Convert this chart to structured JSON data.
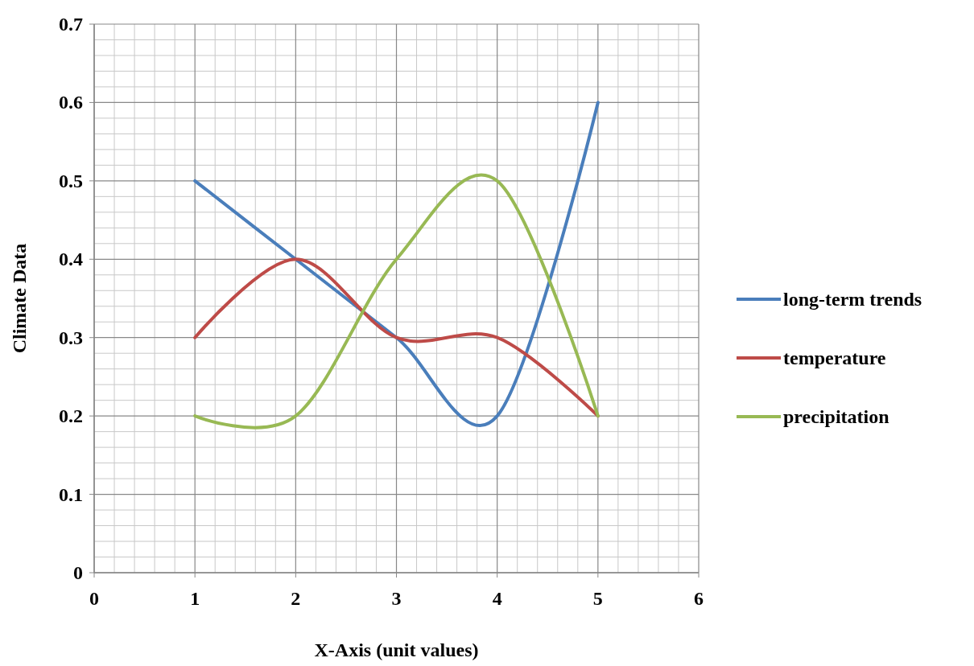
{
  "chart_data": {
    "type": "line",
    "xlabel": "X-Axis (unit values)",
    "ylabel": "Climate Data",
    "x": [
      1,
      2,
      3,
      4,
      5
    ],
    "xlim": [
      0,
      6
    ],
    "xticks": [
      0,
      1,
      2,
      3,
      4,
      5,
      6
    ],
    "ylim": [
      0,
      0.7
    ],
    "yticks": [
      0,
      0.1,
      0.2,
      0.3,
      0.4,
      0.5,
      0.6,
      0.7
    ],
    "grid": true,
    "legend": "right",
    "marker": "none",
    "line_style": "solid",
    "series": [
      {
        "name": "long-term trends",
        "color": "#4a7ebb",
        "values": [
          0.5,
          0.4,
          0.3,
          0.2,
          0.6
        ]
      },
      {
        "name": "temperature",
        "color": "#be4b48",
        "values": [
          0.3,
          0.4,
          0.3,
          0.3,
          0.2
        ]
      },
      {
        "name": "precipitation",
        "color": "#98b954",
        "values": [
          0.2,
          0.2,
          0.4,
          0.5,
          0.2
        ]
      }
    ]
  }
}
